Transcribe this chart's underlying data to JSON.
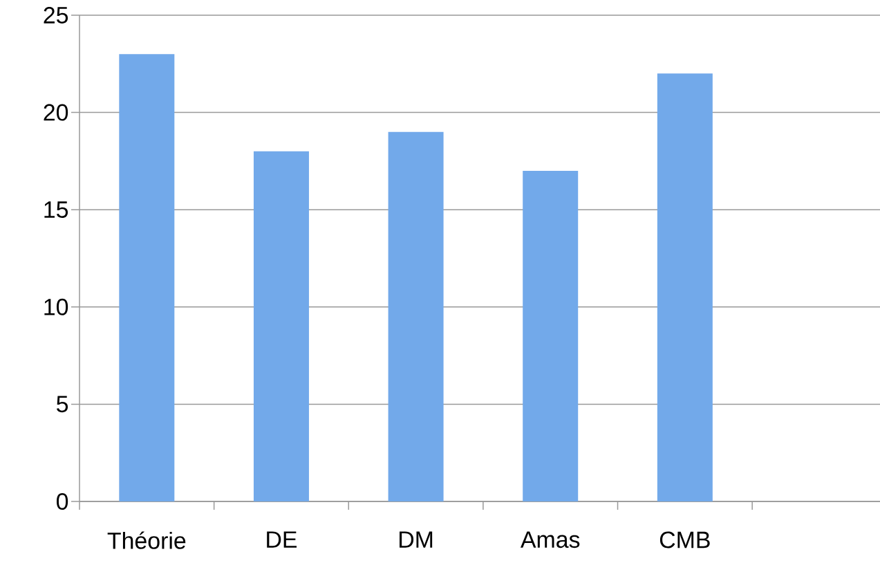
{
  "chart_data": {
    "type": "bar",
    "categories": [
      "Théorie",
      "DE",
      "DM",
      "Amas",
      "CMB",
      null
    ],
    "values": [
      23,
      18,
      19,
      17,
      22,
      null
    ],
    "color": "#72a9ea",
    "ylim": [
      0,
      25
    ],
    "yticks": [
      0,
      5,
      10,
      15,
      20,
      25
    ],
    "grid": "y"
  }
}
